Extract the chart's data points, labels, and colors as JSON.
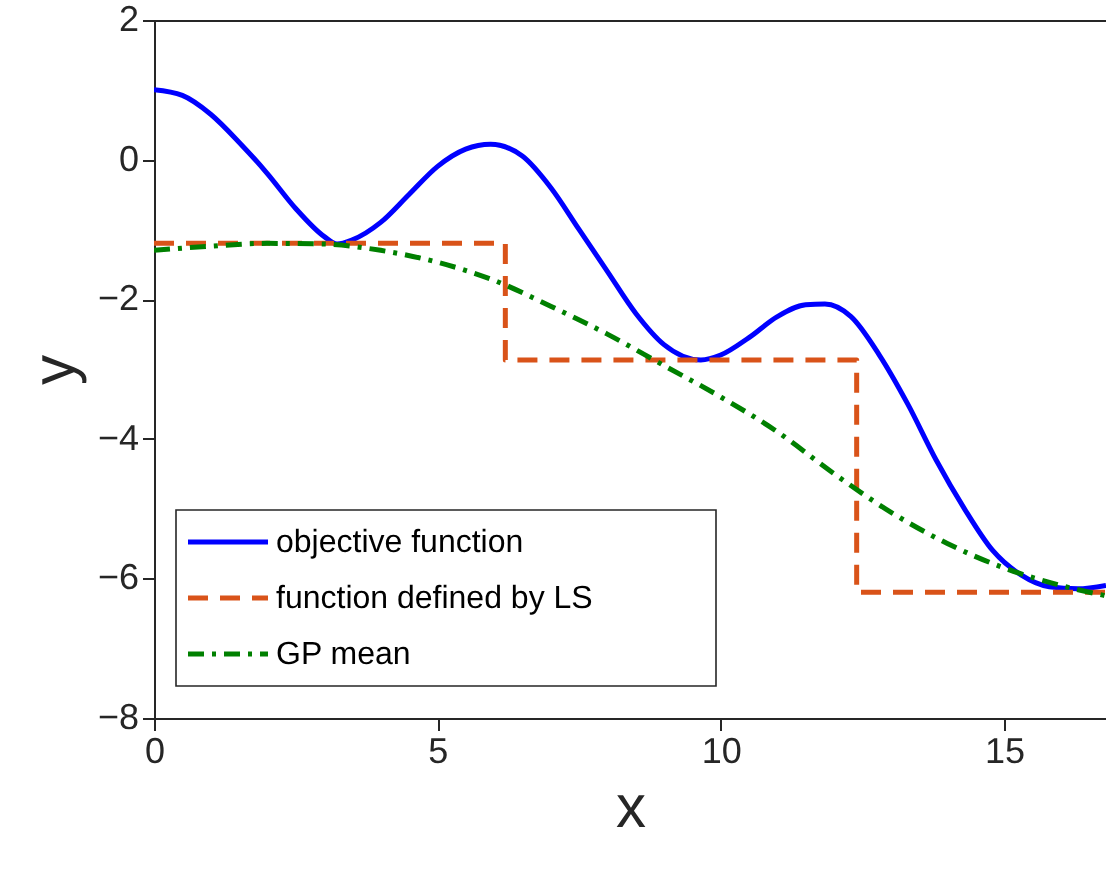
{
  "chart_data": {
    "type": "line",
    "xlabel": "x",
    "ylabel": "y",
    "xlim": [
      0,
      16.8
    ],
    "ylim": [
      -8,
      2
    ],
    "xticks": [
      0,
      5,
      10,
      15
    ],
    "yticks": [
      -8,
      -6,
      -4,
      -2,
      0,
      2
    ],
    "grid": false,
    "legend": "bottom left",
    "marker": "none",
    "series": [
      {
        "name": "objective function",
        "color": "#0000ff",
        "line_style": "solid",
        "x": [
          0,
          0.5,
          1,
          1.5,
          2,
          2.5,
          3,
          3.23,
          3.5,
          4,
          4.5,
          5,
          5.5,
          5.94,
          6.5,
          7,
          7.5,
          8,
          8.5,
          9,
          9.65,
          10,
          10.5,
          11,
          11.5,
          11.84,
          12.3,
          12.8,
          13.3,
          13.8,
          14.3,
          14.8,
          15.3,
          15.8,
          16.3,
          16.8
        ],
        "values": [
          1,
          0.92,
          0.65,
          0.25,
          -0.2,
          -0.7,
          -1.1,
          -1.21,
          -1.15,
          -0.9,
          -0.5,
          -0.1,
          0.15,
          0.22,
          0.05,
          -0.4,
          -1.0,
          -1.6,
          -2.2,
          -2.65,
          -2.87,
          -2.8,
          -2.55,
          -2.25,
          -2.08,
          -2.07,
          -2.25,
          -2.8,
          -3.5,
          -4.3,
          -5.0,
          -5.6,
          -5.95,
          -6.12,
          -6.15,
          -6.1
        ]
      },
      {
        "name": "function defined by LS",
        "color": "#d95319",
        "line_style": "dashed",
        "type": "step",
        "x": [
          0,
          6.2,
          12.4,
          16.8
        ],
        "values": [
          -1.2,
          -2.87,
          -6.2,
          -6.2
        ]
      },
      {
        "name": "GP mean",
        "color": "#008000",
        "line_style": "dashdot",
        "x": [
          0,
          1,
          2,
          3,
          4,
          5,
          6,
          7,
          8,
          9,
          10,
          11,
          12,
          13,
          14,
          15,
          16,
          16.8
        ],
        "values": [
          -1.3,
          -1.24,
          -1.2,
          -1.21,
          -1.3,
          -1.47,
          -1.73,
          -2.1,
          -2.5,
          -2.95,
          -3.4,
          -3.9,
          -4.5,
          -5.05,
          -5.5,
          -5.85,
          -6.1,
          -6.25
        ]
      }
    ]
  }
}
